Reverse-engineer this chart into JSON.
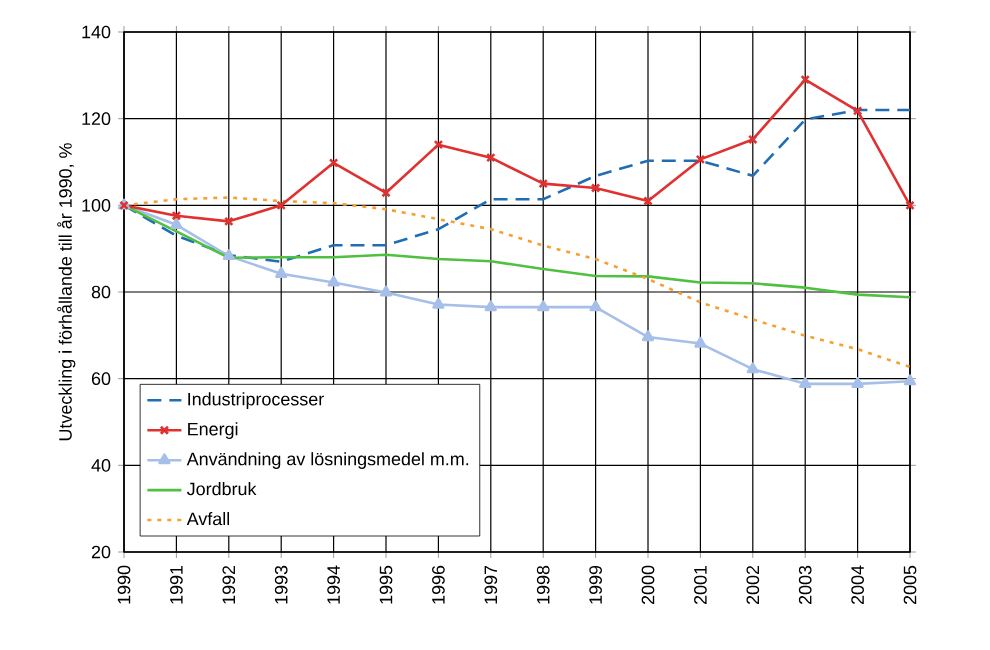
{
  "chart_data": {
    "type": "line",
    "ylabel": "Utveckling i förhållande till år 1990, %",
    "categories": [
      "1990",
      "1991",
      "1992",
      "1993",
      "1994",
      "1995",
      "1996",
      "1997",
      "1998",
      "1999",
      "2000",
      "2001",
      "2002",
      "2003",
      "2004",
      "2005"
    ],
    "ylim": [
      20,
      140
    ],
    "yticks": [
      20,
      40,
      60,
      80,
      100,
      120,
      140
    ],
    "grid": true,
    "legend": "bottom left",
    "series": [
      {
        "name": "Industriprocesser",
        "color": "#1f6db5",
        "line_style": "dashed",
        "marker": "none",
        "values": [
          100,
          93,
          88.5,
          87,
          90.8,
          90.8,
          94.5,
          101.4,
          101.4,
          106.8,
          110.3,
          110.3,
          106.8,
          119.8,
          122,
          122
        ]
      },
      {
        "name": "Energi",
        "color": "#e03030",
        "line_style": "solid",
        "marker": "cross",
        "values": [
          100,
          97.6,
          96.3,
          100,
          109.8,
          102.9,
          114,
          111,
          105,
          104,
          101,
          110.6,
          115.2,
          129,
          121.8,
          100
        ]
      },
      {
        "name": "Användning av lösningsmedel m.m.",
        "color": "#a6bfe8",
        "line_style": "solid",
        "marker": "triangle",
        "values": [
          100,
          95.5,
          88.3,
          84.2,
          82.2,
          79.9,
          77.1,
          76.5,
          76.5,
          76.5,
          69.6,
          68.1,
          62.2,
          58.8,
          58.8,
          59.4
        ]
      },
      {
        "name": "Jordbruk",
        "color": "#50c040",
        "line_style": "solid",
        "marker": "none",
        "values": [
          100,
          94,
          87.9,
          88,
          88,
          88.6,
          87.6,
          87.1,
          85.3,
          83.7,
          83.6,
          82.2,
          82,
          81,
          79.4,
          78.8
        ]
      },
      {
        "name": "Avfall",
        "color": "#f5a030",
        "line_style": "dotted",
        "marker": "none",
        "values": [
          100,
          101.4,
          101.8,
          101,
          100.5,
          99.1,
          96.8,
          94.5,
          90.7,
          87.6,
          83,
          77.6,
          73.7,
          69.9,
          66.8,
          62.7
        ]
      }
    ]
  }
}
